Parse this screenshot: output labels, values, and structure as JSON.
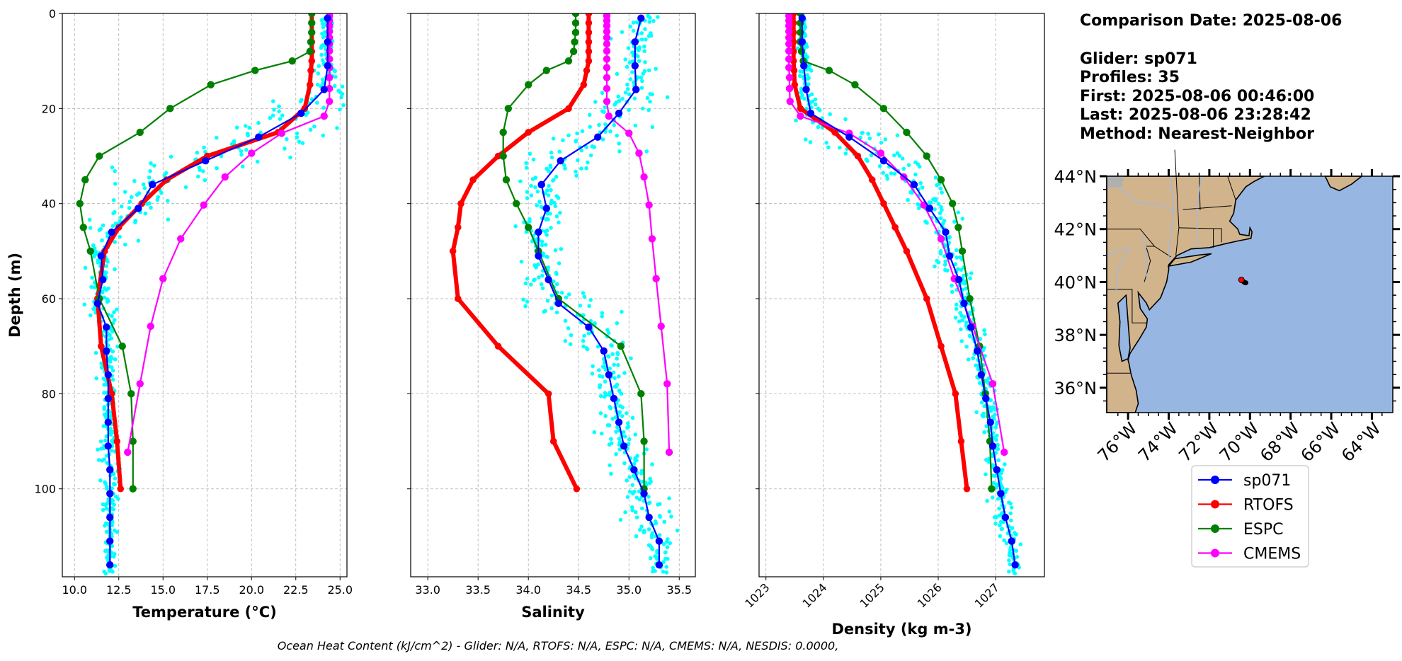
{
  "info": {
    "comparison_date": "Comparison Date: 2025-08-06",
    "glider": "Glider: sp071",
    "profiles": "Profiles: 35",
    "first": "First: 2025-08-06 00:46:00",
    "last": "Last: 2025-08-06 23:28:42",
    "method": "Method: Nearest-Neighbor"
  },
  "footer": "Ocean Heat Content (kJ/cm^2) - Glider: N/A,  RTOFS: N/A,  ESPC: N/A,  CMEMS: N/A,  NESDIS: 0.0000,",
  "colors": {
    "glider": "#0000ff",
    "rtofs": "#ff0000",
    "espc": "#008000",
    "cmems": "#ff00ff",
    "profiles": "#00ffff",
    "land": "#d2b48c",
    "ocean": "#97b6e1",
    "lakes": "#b0b0b0"
  },
  "chart_data": [
    {
      "type": "line",
      "id": "temperature",
      "xlabel": "Temperature (°C)",
      "ylabel": "Depth (m)",
      "xlim": [
        9.31,
        25.39
      ],
      "ylim": [
        118.5,
        0
      ],
      "xticks": [
        10.0,
        12.5,
        15.0,
        17.5,
        20.0,
        22.5,
        25.0
      ],
      "xtick_labels": [
        "10.0",
        "12.5",
        "15.0",
        "17.5",
        "20.0",
        "22.5",
        "25.0"
      ],
      "yticks": [
        0,
        20,
        40,
        60,
        80,
        100
      ],
      "ytick_labels": [
        "0",
        "20",
        "40",
        "60",
        "80",
        "100"
      ],
      "grid": true
    },
    {
      "type": "line",
      "id": "salinity",
      "xlabel": "Salinity",
      "xlim": [
        32.83,
        35.66
      ],
      "ylim": [
        118.5,
        0
      ],
      "xticks": [
        33.0,
        33.5,
        34.0,
        34.5,
        35.0,
        35.5
      ],
      "xtick_labels": [
        "33.0",
        "33.5",
        "34.0",
        "34.5",
        "35.0",
        "35.5"
      ],
      "yticks": [
        0,
        20,
        40,
        60,
        80,
        100
      ],
      "grid": true
    },
    {
      "type": "line",
      "id": "density",
      "xlabel": "Density (kg m-3)",
      "xlim": [
        1022.88,
        1027.85
      ],
      "ylim": [
        118.5,
        0
      ],
      "xticks": [
        1023,
        1024,
        1025,
        1026,
        1027
      ],
      "xtick_labels": [
        "1023",
        "1024",
        "1025",
        "1026",
        "1027"
      ],
      "yticks": [
        0,
        20,
        40,
        60,
        80,
        100
      ],
      "grid": true
    }
  ],
  "series": {
    "glider": {
      "name": "sp071",
      "depth": [
        1,
        6,
        11,
        16,
        21,
        26,
        31,
        36,
        41,
        46,
        51,
        56,
        61,
        66,
        71,
        76,
        81,
        86,
        91,
        96,
        101,
        106,
        111,
        116
      ],
      "temperature": [
        24.3,
        24.3,
        24.3,
        24.1,
        22.8,
        20.4,
        17.4,
        14.4,
        13.6,
        12.1,
        11.5,
        11.6,
        11.3,
        11.8,
        11.8,
        11.9,
        11.9,
        11.9,
        11.9,
        12.0,
        12.0,
        12.0,
        12.0,
        12.0
      ],
      "salinity": [
        35.12,
        35.06,
        35.06,
        35.07,
        34.9,
        34.69,
        34.32,
        34.13,
        34.18,
        34.1,
        34.1,
        34.2,
        34.3,
        34.6,
        34.75,
        34.8,
        34.85,
        34.9,
        34.95,
        35.05,
        35.15,
        35.2,
        35.3,
        35.3
      ],
      "density": [
        1023.63,
        1023.63,
        1023.66,
        1023.7,
        1023.78,
        1024.45,
        1025.05,
        1025.58,
        1025.85,
        1026.13,
        1026.2,
        1026.36,
        1026.45,
        1026.57,
        1026.68,
        1026.75,
        1026.83,
        1026.91,
        1026.95,
        1027.02,
        1027.09,
        1027.17,
        1027.28,
        1027.34
      ]
    },
    "rtofs": {
      "name": "RTOFS",
      "depth": [
        0,
        2,
        4,
        6,
        8,
        10,
        12,
        15,
        20,
        25,
        30,
        35,
        40,
        45,
        50,
        60,
        70,
        80,
        90,
        100
      ],
      "temperature": [
        23.4,
        23.4,
        23.4,
        23.4,
        23.4,
        23.4,
        23.35,
        23.3,
        23.0,
        21.5,
        17.5,
        15.2,
        13.8,
        12.5,
        11.7,
        11.3,
        11.5,
        12.1,
        12.4,
        12.6
      ],
      "salinity": [
        34.6,
        34.6,
        34.6,
        34.6,
        34.6,
        34.6,
        34.58,
        34.55,
        34.4,
        34.0,
        33.7,
        33.45,
        33.33,
        33.3,
        33.25,
        33.3,
        33.7,
        34.2,
        34.25,
        34.48
      ],
      "density": [
        1023.48,
        1023.48,
        1023.48,
        1023.48,
        1023.48,
        1023.48,
        1023.49,
        1023.5,
        1023.6,
        1024.2,
        1024.6,
        1024.85,
        1025.05,
        1025.25,
        1025.45,
        1025.8,
        1026.05,
        1026.3,
        1026.4,
        1026.5
      ]
    },
    "espc": {
      "name": "ESPC",
      "depth": [
        0,
        2,
        4,
        6,
        8,
        10,
        12,
        15,
        20,
        25,
        30,
        35,
        40,
        45,
        50,
        60,
        70,
        80,
        90,
        100
      ],
      "temperature": [
        23.4,
        23.4,
        23.4,
        23.35,
        23.3,
        22.3,
        20.2,
        17.7,
        15.4,
        13.7,
        11.4,
        10.6,
        10.3,
        10.5,
        10.9,
        11.4,
        12.7,
        13.2,
        13.3,
        13.3
      ],
      "salinity": [
        34.47,
        34.47,
        34.47,
        34.46,
        34.45,
        34.4,
        34.18,
        34.0,
        33.8,
        33.75,
        33.75,
        33.78,
        33.88,
        34.0,
        34.1,
        34.3,
        34.92,
        35.12,
        35.15,
        35.15
      ],
      "density": [
        1023.6,
        1023.6,
        1023.6,
        1023.6,
        1023.62,
        1023.65,
        1024.1,
        1024.55,
        1025.05,
        1025.45,
        1025.8,
        1026.05,
        1026.25,
        1026.35,
        1026.42,
        1026.55,
        1026.72,
        1026.82,
        1026.9,
        1026.93
      ]
    },
    "cmems": {
      "name": "CMEMS",
      "depth": [
        0.5,
        1.5,
        2.6,
        3.8,
        5.1,
        6.4,
        7.9,
        9.6,
        11.4,
        13.5,
        15.8,
        18.5,
        21.6,
        25.2,
        29.4,
        34.4,
        40.3,
        47.4,
        55.8,
        65.8,
        77.9,
        92.3
      ],
      "temperature": [
        24.4,
        24.4,
        24.4,
        24.4,
        24.4,
        24.4,
        24.4,
        24.4,
        24.4,
        24.4,
        24.4,
        24.4,
        24.1,
        21.7,
        20.0,
        18.5,
        17.3,
        16.0,
        15.0,
        14.3,
        13.7,
        13.0
      ],
      "salinity": [
        34.78,
        34.78,
        34.78,
        34.78,
        34.78,
        34.78,
        34.78,
        34.78,
        34.78,
        34.78,
        34.78,
        34.78,
        34.8,
        35.0,
        35.1,
        35.15,
        35.2,
        35.23,
        35.27,
        35.32,
        35.38,
        35.4
      ],
      "density": [
        1023.4,
        1023.4,
        1023.4,
        1023.4,
        1023.4,
        1023.4,
        1023.4,
        1023.4,
        1023.4,
        1023.41,
        1023.41,
        1023.42,
        1023.6,
        1024.45,
        1025.0,
        1025.4,
        1025.75,
        1026.05,
        1026.28,
        1026.6,
        1026.95,
        1027.15
      ]
    },
    "profiles": {
      "count": 35,
      "spread": {
        "temperature": 0.6,
        "salinity": 0.18,
        "density": 0.09
      }
    }
  },
  "map": {
    "lon_range": [
      -77.05,
      -62.97
    ],
    "lat_range": [
      35.06,
      44.0
    ],
    "lat_ticks": [
      36,
      38,
      40,
      42,
      44
    ],
    "lat_tick_labels": [
      "36°N",
      "38°N",
      "40°N",
      "42°N",
      "44°N"
    ],
    "lon_ticks": [
      -76,
      -74,
      -72,
      -70,
      -68,
      -66,
      -64
    ],
    "lon_tick_labels": [
      "76°W",
      "74°W",
      "72°W",
      "70°W",
      "68°W",
      "66°W",
      "64°W"
    ],
    "glider_track": [
      [
        -70.3,
        40.0
      ],
      [
        -70.25,
        39.98
      ],
      [
        -70.2,
        39.97
      ]
    ],
    "model_location": [
      -70.42,
      40.08
    ]
  },
  "legend": {
    "items": [
      {
        "label": "sp071",
        "color": "#0000ff"
      },
      {
        "label": "RTOFS",
        "color": "#ff0000"
      },
      {
        "label": "ESPC",
        "color": "#008000"
      },
      {
        "label": "CMEMS",
        "color": "#ff00ff"
      }
    ]
  }
}
